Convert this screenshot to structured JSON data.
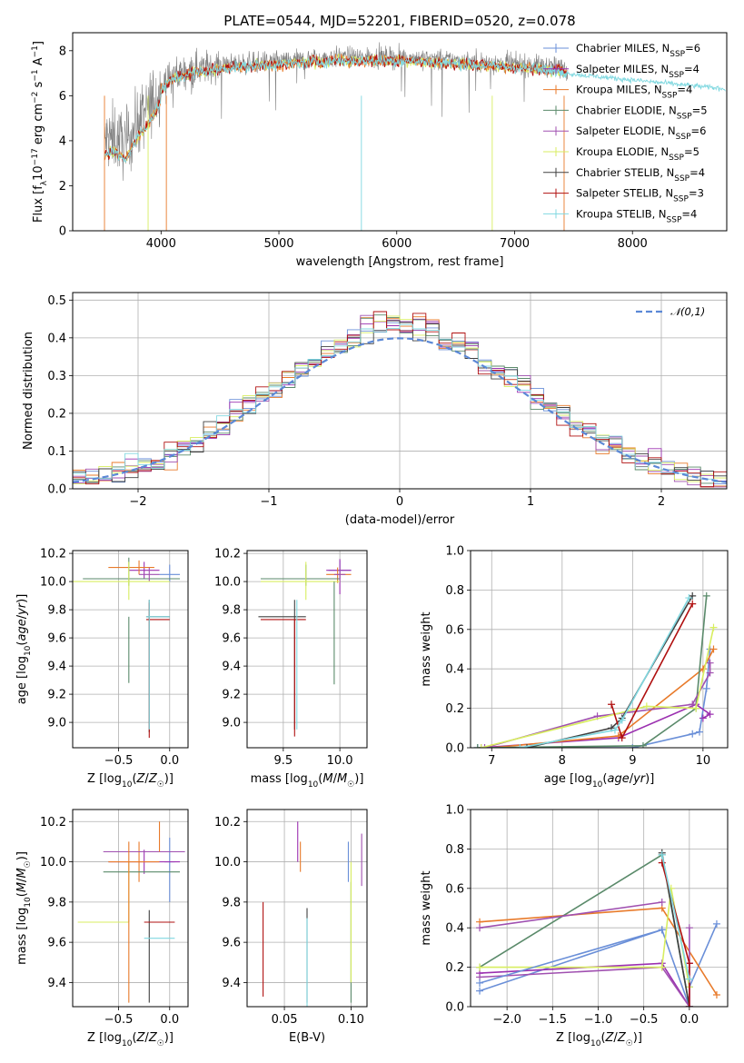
{
  "palette": {
    "chabrier_miles": "#6a8fd8",
    "salpeter_miles": "#9b30b0",
    "kroupa_miles": "#e87a2a",
    "chabrier_elodie": "#5a8a6a",
    "salpeter_elodie": "#a050b0",
    "kroupa_elodie": "#d8ee60",
    "chabrier_stelib": "#404040",
    "salpeter_stelib": "#b01010",
    "kroupa_stelib": "#80d8e0",
    "gray": "#808080"
  },
  "chart_data": [
    {
      "id": "spectrum",
      "type": "line",
      "title": "PLATE=0544, MJD=52201, FIBERID=0520, z=0.078",
      "xlabel": "wavelength [Angstrom, rest frame]",
      "ylabel": "Flux [f_λ10⁻¹⁷ erg cm⁻² s⁻¹ A⁻¹]",
      "xlim": [
        3250,
        8800
      ],
      "ylim": [
        0,
        8.8
      ],
      "xticks": [
        4000,
        5000,
        6000,
        7000,
        8000
      ],
      "yticks": [
        0,
        2,
        4,
        6,
        8
      ],
      "grid": false,
      "legend_position": "top-right",
      "legend": [
        "Chabrier MILES, N_SSP=6",
        "Salpeter MILES, N_SSP=4",
        "Kroupa MILES, N_SSP=4",
        "Chabrier ELODIE, N_SSP=5",
        "Salpeter ELODIE, N_SSP=6",
        "Kroupa ELODIE, N_SSP=5",
        "Chabrier STELIB, N_SSP=4",
        "Salpeter STELIB, N_SSP=3",
        "Kroupa STELIB, N_SSP=4"
      ],
      "envelope": {
        "x": [
          3520,
          3600,
          3700,
          3800,
          3900,
          4000,
          4100,
          4300,
          4600,
          4900,
          5200,
          5500,
          5800,
          6100,
          6400,
          6700,
          7000,
          7300,
          7450,
          7600,
          7800,
          8000,
          8200,
          8400,
          8600,
          8800
        ],
        "y": [
          4.0,
          4.2,
          3.8,
          4.8,
          5.5,
          6.4,
          6.9,
          7.2,
          7.4,
          7.5,
          7.6,
          7.7,
          7.7,
          7.7,
          7.6,
          7.5,
          7.4,
          7.3,
          7.2,
          7.1,
          7.0,
          6.9,
          6.8,
          6.7,
          6.6,
          6.5
        ]
      }
    },
    {
      "id": "residuals",
      "type": "histogram",
      "xlabel": "(data-model)/error",
      "ylabel": "Normed distribution",
      "xlim": [
        -2.5,
        2.5
      ],
      "ylim": [
        0,
        0.52
      ],
      "xticks": [
        -2,
        -1,
        0,
        1,
        2
      ],
      "yticks": [
        0.0,
        0.1,
        0.2,
        0.3,
        0.4,
        0.5
      ],
      "grid": true,
      "legend": [
        "𝒩(0,1)"
      ],
      "legend_position": "top-right",
      "bin_width": 0.1
    },
    {
      "id": "age_vs_Z",
      "type": "errorbar",
      "xlabel": "Z [log₁₀(Z/Z☉)]",
      "ylabel": "age  [log₁₀(age/yr)]",
      "xlim": [
        -0.95,
        0.18
      ],
      "ylim": [
        8.82,
        10.22
      ],
      "xticks": [
        -0.5,
        0.0
      ],
      "yticks": [
        9.0,
        9.2,
        9.4,
        9.6,
        9.8,
        10.0,
        10.2
      ],
      "grid": true,
      "points": [
        {
          "s": "chabrier_miles",
          "x": 0.0,
          "xerr": [
            0.1,
            0.1
          ],
          "y": 10.05,
          "yerr": [
            0.05,
            0.07
          ]
        },
        {
          "s": "salpeter_miles",
          "x": -0.25,
          "xerr": [
            0.15,
            0.15
          ],
          "y": 10.08,
          "yerr": [
            0.06,
            0.06
          ]
        },
        {
          "s": "kroupa_miles",
          "x": -0.3,
          "xerr": [
            0.3,
            0.15
          ],
          "y": 10.1,
          "yerr": [
            0.05,
            0.05
          ]
        },
        {
          "s": "chabrier_elodie",
          "x": -0.4,
          "xerr": [
            0.45,
            0.5
          ],
          "y": 10.02,
          "yerr": [
            0.05,
            0.15
          ]
        },
        {
          "s": "salpeter_elodie",
          "x": -0.2,
          "xerr": [
            0.1,
            0.1
          ],
          "y": 10.05,
          "yerr": [
            0.05,
            0.05
          ]
        },
        {
          "s": "kroupa_elodie",
          "x": -0.4,
          "xerr": [
            0.55,
            0.4
          ],
          "y": 10.0,
          "yerr": [
            0.13,
            0.14
          ]
        },
        {
          "s": "chabrier_stelib",
          "x": -0.2,
          "xerr": [
            0.03,
            0.2
          ],
          "y": 9.75,
          "yerr": [
            0.82,
            0.12
          ]
        },
        {
          "s": "salpeter_stelib",
          "x": -0.2,
          "xerr": [
            0.03,
            0.2
          ],
          "y": 9.73,
          "yerr": [
            0.84,
            0.12
          ]
        },
        {
          "s": "kroupa_stelib",
          "x": -0.2,
          "xerr": [
            0.03,
            0.2
          ],
          "y": 9.75,
          "yerr": [
            0.8,
            0.12
          ]
        },
        {
          "s": "chabrier_elodie",
          "x": -0.4,
          "xerr": [
            0.0,
            0.0
          ],
          "y": 9.55,
          "yerr": [
            0.27,
            0.2
          ]
        }
      ]
    },
    {
      "id": "age_vs_mass",
      "type": "errorbar",
      "xlabel": "mass [log₁₀(M/M☉)]",
      "ylabel": "",
      "xlim": [
        9.18,
        10.24
      ],
      "ylim": [
        8.82,
        10.22
      ],
      "xticks": [
        9.5,
        10.0
      ],
      "yticks": [
        9.0,
        9.2,
        9.4,
        9.6,
        9.8,
        10.0,
        10.2
      ],
      "grid": true,
      "points": [
        {
          "s": "chabrier_miles",
          "x": 10.0,
          "xerr": [
            0.1,
            0.1
          ],
          "y": 10.08,
          "yerr": [
            0.06,
            0.07
          ]
        },
        {
          "s": "salpeter_miles",
          "x": 10.0,
          "xerr": [
            0.12,
            0.1
          ],
          "y": 10.08,
          "yerr": [
            0.17,
            0.08
          ]
        },
        {
          "s": "kroupa_miles",
          "x": 9.98,
          "xerr": [
            0.1,
            0.12
          ],
          "y": 10.05,
          "yerr": [
            0.06,
            0.05
          ]
        },
        {
          "s": "chabrier_elodie",
          "x": 9.7,
          "xerr": [
            0.4,
            0.3
          ],
          "y": 10.02,
          "yerr": [
            0.05,
            0.1
          ]
        },
        {
          "s": "salpeter_elodie",
          "x": 10.0,
          "xerr": [
            0.05,
            0.05
          ],
          "y": 10.05,
          "yerr": [
            0.05,
            0.05
          ]
        },
        {
          "s": "kroupa_elodie",
          "x": 9.7,
          "xerr": [
            0.4,
            0.3
          ],
          "y": 10.0,
          "yerr": [
            0.13,
            0.14
          ]
        },
        {
          "s": "chabrier_stelib",
          "x": 9.6,
          "xerr": [
            0.32,
            0.1
          ],
          "y": 9.75,
          "yerr": [
            0.8,
            0.12
          ]
        },
        {
          "s": "salpeter_stelib",
          "x": 9.6,
          "xerr": [
            0.3,
            0.1
          ],
          "y": 9.73,
          "yerr": [
            0.83,
            0.0
          ]
        },
        {
          "s": "kroupa_stelib",
          "x": 9.62,
          "xerr": [
            0.0,
            0.0
          ],
          "y": 9.75,
          "yerr": [
            0.8,
            0.12
          ]
        },
        {
          "s": "chabrier_elodie",
          "x": 9.95,
          "xerr": [
            0.0,
            0.0
          ],
          "y": 9.6,
          "yerr": [
            0.33,
            0.4
          ]
        }
      ]
    },
    {
      "id": "mass_weight_vs_age",
      "type": "line",
      "xlabel": "age  [log₁₀(age/yr)]",
      "ylabel": "mass weight",
      "xlim": [
        6.7,
        10.35
      ],
      "ylim": [
        0,
        1
      ],
      "xticks": [
        7,
        8,
        9,
        10
      ],
      "yticks": [
        0.0,
        0.2,
        0.4,
        0.6,
        0.8,
        1.0
      ],
      "grid": true,
      "series": [
        {
          "s": "chabrier_miles",
          "x": [
            6.8,
            9.0,
            9.85,
            9.95,
            10.05,
            10.1
          ],
          "y": [
            0.0,
            0.0,
            0.07,
            0.08,
            0.3,
            0.5
          ]
        },
        {
          "s": "salpeter_miles",
          "x": [
            6.85,
            8.8,
            9.9,
            10.1,
            10.0
          ],
          "y": [
            0.0,
            0.05,
            0.22,
            0.17,
            0.15
          ]
        },
        {
          "s": "kroupa_miles",
          "x": [
            7.0,
            8.8,
            10.0,
            10.15
          ],
          "y": [
            0.0,
            0.06,
            0.4,
            0.5
          ]
        },
        {
          "s": "chabrier_elodie",
          "x": [
            6.8,
            9.15,
            9.9,
            10.05
          ],
          "y": [
            0.0,
            0.01,
            0.2,
            0.77
          ]
        },
        {
          "s": "salpeter_elodie",
          "x": [
            6.9,
            8.5,
            9.85,
            10.1,
            10.1
          ],
          "y": [
            0.0,
            0.16,
            0.22,
            0.38,
            0.43
          ]
        },
        {
          "s": "kroupa_elodie",
          "x": [
            6.85,
            9.2,
            9.9,
            10.15
          ],
          "y": [
            0.0,
            0.21,
            0.2,
            0.61
          ]
        },
        {
          "s": "chabrier_stelib",
          "x": [
            7.5,
            8.7,
            8.85,
            9.85
          ],
          "y": [
            0.0,
            0.1,
            0.15,
            0.77
          ]
        },
        {
          "s": "salpeter_stelib",
          "x": [
            8.7,
            8.85,
            9.85
          ],
          "y": [
            0.22,
            0.05,
            0.73
          ]
        },
        {
          "s": "kroupa_stelib",
          "x": [
            7.4,
            8.75,
            8.85,
            9.8
          ],
          "y": [
            0.0,
            0.09,
            0.14,
            0.76
          ]
        }
      ]
    },
    {
      "id": "mass_vs_Z",
      "type": "errorbar",
      "xlabel": "Z [log₁₀(Z/Z☉)]",
      "ylabel": "mass [log₁₀(M/M☉)]",
      "xlim": [
        -0.95,
        0.18
      ],
      "ylim": [
        9.28,
        10.26
      ],
      "xticks": [
        -0.5,
        0.0
      ],
      "yticks": [
        9.4,
        9.6,
        9.8,
        10.0,
        10.2
      ],
      "grid": true,
      "points": [
        {
          "s": "chabrier_miles",
          "x": 0.0,
          "xerr": [
            0.05,
            0.05
          ],
          "y": 10.0,
          "yerr": [
            0.2,
            0.12
          ]
        },
        {
          "s": "salpeter_miles",
          "x": -0.25,
          "xerr": [
            0.35,
            0.35
          ],
          "y": 10.0,
          "yerr": [
            0.06,
            0.06
          ]
        },
        {
          "s": "kroupa_miles",
          "x": -0.3,
          "xerr": [
            0.3,
            0.2
          ],
          "y": 10.0,
          "yerr": [
            0.1,
            0.1
          ]
        },
        {
          "s": "chabrier_elodie",
          "x": -0.35,
          "xerr": [
            0.3,
            0.45
          ],
          "y": 9.95,
          "yerr": [
            0.0,
            0.0
          ]
        },
        {
          "s": "salpeter_elodie",
          "x": -0.25,
          "xerr": [
            0.4,
            0.4
          ],
          "y": 10.05,
          "yerr": [
            0.0,
            0.0
          ]
        },
        {
          "s": "kroupa_elodie",
          "x": -0.4,
          "xerr": [
            0.5,
            0.0
          ],
          "y": 9.7,
          "yerr": [
            0.0,
            0.3
          ]
        },
        {
          "s": "chabrier_stelib",
          "x": -0.2,
          "xerr": [
            0.0,
            0.0
          ],
          "y": 9.7,
          "yerr": [
            0.4,
            0.06
          ]
        },
        {
          "s": "salpeter_stelib",
          "x": -0.1,
          "xerr": [
            0.15,
            0.15
          ],
          "y": 9.7,
          "yerr": [
            0.0,
            0.0
          ]
        },
        {
          "s": "kroupa_stelib",
          "x": -0.1,
          "xerr": [
            0.15,
            0.15
          ],
          "y": 9.62,
          "yerr": [
            0.0,
            0.0
          ]
        },
        {
          "s": "kroupa_miles",
          "x": -0.4,
          "xerr": [
            0.0,
            0.0
          ],
          "y": 9.7,
          "yerr": [
            0.4,
            0.4
          ]
        },
        {
          "s": "kroupa_miles",
          "x": -0.1,
          "xerr": [
            0.0,
            0.0
          ],
          "y": 10.05,
          "yerr": [
            0.0,
            0.15
          ]
        }
      ]
    },
    {
      "id": "mass_vs_ebv",
      "type": "errorbar",
      "xlabel": "E(B-V)",
      "ylabel": "",
      "xlim": [
        0.022,
        0.112
      ],
      "ylim": [
        9.28,
        10.26
      ],
      "xticks": [
        0.05,
        0.1
      ],
      "yticks": [
        9.4,
        9.6,
        9.8,
        10.0,
        10.2
      ],
      "grid": true,
      "points": [
        {
          "s": "salpeter_stelib",
          "x": 0.034,
          "xerr": [
            0,
            0
          ],
          "y": 9.55,
          "yerr": [
            0.22,
            0.25
          ]
        },
        {
          "s": "kroupa_miles",
          "x": 0.062,
          "xerr": [
            0,
            0
          ],
          "y": 10.0,
          "yerr": [
            0.05,
            0.1
          ]
        },
        {
          "s": "salpeter_miles",
          "x": 0.06,
          "xerr": [
            0,
            0
          ],
          "y": 10.1,
          "yerr": [
            0.1,
            0.1
          ]
        },
        {
          "s": "chabrier_stelib",
          "x": 0.067,
          "xerr": [
            0,
            0
          ],
          "y": 9.65,
          "yerr": [
            0.35,
            0.12
          ]
        },
        {
          "s": "kroupa_stelib",
          "x": 0.067,
          "xerr": [
            0,
            0
          ],
          "y": 9.5,
          "yerr": [
            0.22,
            0.22
          ]
        },
        {
          "s": "chabrier_miles",
          "x": 0.098,
          "xerr": [
            0,
            0
          ],
          "y": 10.0,
          "yerr": [
            0.1,
            0.1
          ]
        },
        {
          "s": "chabrier_elodie",
          "x": 0.1,
          "xerr": [
            0,
            0
          ],
          "y": 9.6,
          "yerr": [
            0.3,
            0.3
          ]
        },
        {
          "s": "kroupa_elodie",
          "x": 0.1,
          "xerr": [
            0,
            0
          ],
          "y": 9.7,
          "yerr": [
            0.3,
            0.3
          ]
        },
        {
          "s": "salpeter_elodie",
          "x": 0.108,
          "xerr": [
            0,
            0
          ],
          "y": 10.0,
          "yerr": [
            0.12,
            0.14
          ]
        }
      ]
    },
    {
      "id": "mass_weight_vs_Z",
      "type": "line",
      "xlabel": "Z [log₁₀(Z/Z☉)]",
      "ylabel": "mass weight",
      "xlim": [
        -2.4,
        0.42
      ],
      "ylim": [
        0,
        1
      ],
      "xticks": [
        -2.0,
        -1.5,
        -1.0,
        -0.5,
        0.0
      ],
      "yticks": [
        0.0,
        0.2,
        0.4,
        0.6,
        0.8,
        1.0
      ],
      "grid": true,
      "series": [
        {
          "s": "chabrier_miles",
          "x": [
            -2.3,
            -0.3,
            0.0,
            0.0,
            0.3
          ],
          "y": [
            0.08,
            0.39,
            0.0,
            0.1,
            0.42
          ]
        },
        {
          "s": "salpeter_miles",
          "x": [
            -2.3,
            -0.3,
            0.0,
            0.0
          ],
          "y": [
            0.17,
            0.22,
            0.0,
            0.22
          ]
        },
        {
          "s": "kroupa_miles",
          "x": [
            -2.3,
            -0.3,
            0.3
          ],
          "y": [
            0.43,
            0.5,
            0.06
          ]
        },
        {
          "s": "chabrier_elodie",
          "x": [
            -2.3,
            -0.3,
            0.0
          ],
          "y": [
            0.2,
            0.77,
            0.0
          ]
        },
        {
          "s": "salpeter_elodie",
          "x": [
            -2.3,
            -0.3,
            0.0,
            0.0
          ],
          "y": [
            0.15,
            0.2,
            0.0,
            0.4
          ]
        },
        {
          "s": "kroupa_elodie",
          "x": [
            -2.3,
            -0.3,
            -0.2,
            0.0
          ],
          "y": [
            0.2,
            0.2,
            0.6,
            0.1
          ]
        },
        {
          "s": "chabrier_stelib",
          "x": [
            -0.3,
            0.0
          ],
          "y": [
            0.78,
            0.0
          ]
        },
        {
          "s": "salpeter_stelib",
          "x": [
            -0.3,
            0.0,
            0.0
          ],
          "y": [
            0.73,
            0.22,
            0.0
          ]
        },
        {
          "s": "kroupa_stelib",
          "x": [
            -0.3,
            0.0
          ],
          "y": [
            0.77,
            0.14
          ]
        },
        {
          "s": "chabrier_miles",
          "x": [
            -2.3,
            -0.3
          ],
          "y": [
            0.12,
            0.39
          ]
        },
        {
          "s": "salpeter_elodie",
          "x": [
            -2.3,
            -0.3
          ],
          "y": [
            0.4,
            0.53
          ]
        }
      ]
    }
  ]
}
